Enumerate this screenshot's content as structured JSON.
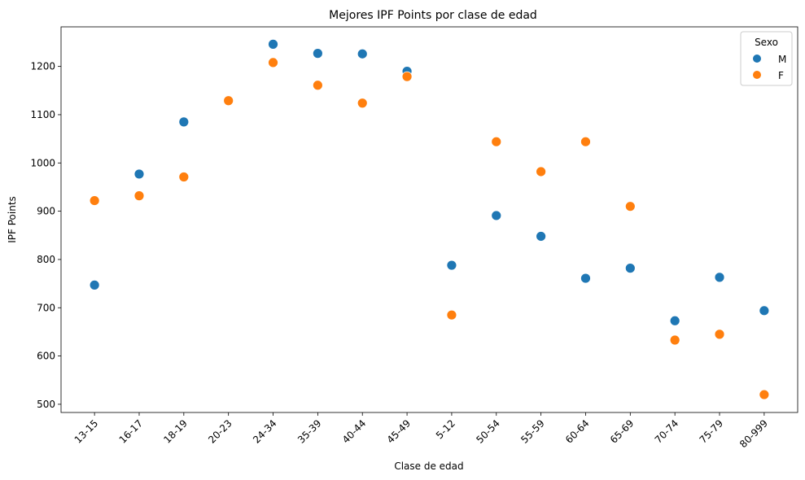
{
  "chart_data": {
    "type": "scatter",
    "title": "Mejores IPF Points por clase de edad",
    "xlabel": "Clase de edad",
    "ylabel": "IPF Points",
    "categories": [
      "13-15",
      "16-17",
      "18-19",
      "20-23",
      "24-34",
      "35-39",
      "40-44",
      "45-49",
      "5-12",
      "50-54",
      "55-59",
      "60-64",
      "65-69",
      "70-74",
      "75-79",
      "80-999"
    ],
    "ylim": [
      483,
      1282
    ],
    "yticks": [
      500,
      600,
      700,
      800,
      900,
      1000,
      1100,
      1200
    ],
    "grid": false,
    "legend": {
      "title": "Sexo",
      "placement": "top-right"
    },
    "series": [
      {
        "name": "M",
        "color": "#1f77b4",
        "values": [
          747,
          977,
          1085,
          null,
          1246,
          1227,
          1226,
          1190,
          788,
          891,
          848,
          761,
          782,
          673,
          763,
          694
        ]
      },
      {
        "name": "F",
        "color": "#ff7f0e",
        "values": [
          922,
          932,
          971,
          1129,
          1208,
          1161,
          1124,
          1179,
          685,
          1044,
          982,
          1044,
          910,
          633,
          645,
          520
        ]
      }
    ]
  }
}
